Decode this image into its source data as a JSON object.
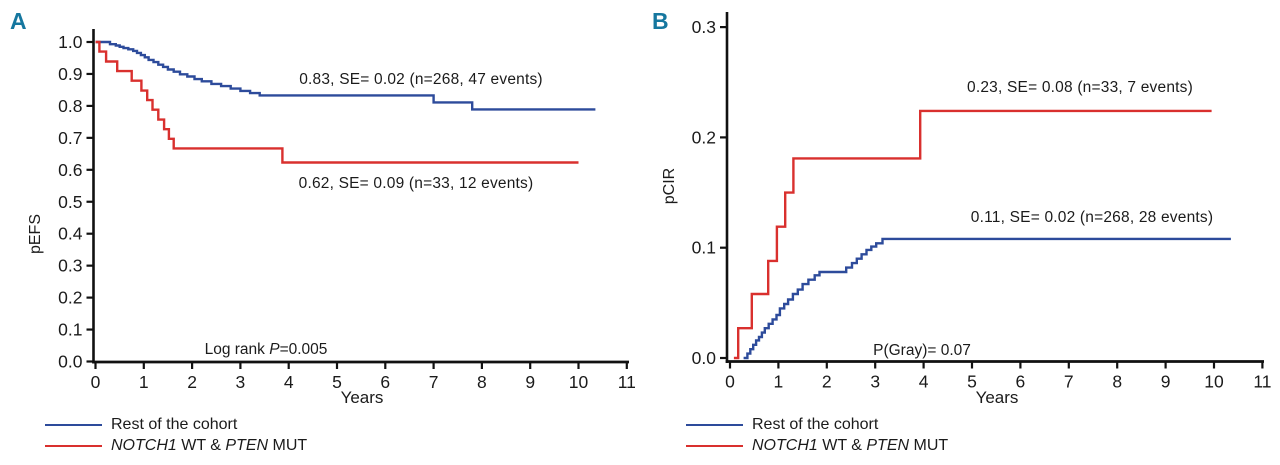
{
  "figure": {
    "panelA": {
      "letter": "A",
      "ylabel": "pEFS",
      "xlabel": "Years",
      "annotation_blue": "0.83, SE= 0.02 (n=268, 47 events)",
      "annotation_red": "0.62, SE= 0.09 (n=33, 12 events)",
      "stats": {
        "prefix": "Log rank ",
        "p": "P",
        "value": "=0.005"
      }
    },
    "panelB": {
      "letter": "B",
      "ylabel": "pCIR",
      "xlabel": "Years",
      "annotation_red": "0.23, SE= 0.08 (n=33, 7 events)",
      "annotation_blue": "0.11, SE= 0.02 (n=268, 28 events)",
      "stats": {
        "text": "P(Gray)= 0.07"
      }
    },
    "legend": {
      "items": [
        {
          "label": "Rest of the cohort",
          "color": "#2d4b9b"
        },
        {
          "gene1": "NOTCH1",
          "mid": " WT & ",
          "gene2": "PTEN",
          "suffix": " MUT",
          "color": "#d9302e"
        }
      ]
    },
    "colors": {
      "blue": "#2d4b9b",
      "red": "#d9302e",
      "panel_letter": "#15779f",
      "axis": "#111111"
    }
  },
  "chart_data": [
    {
      "id": "A",
      "type": "line",
      "subtype": "step-survival",
      "title": "",
      "xlabel": "Years",
      "ylabel": "pEFS",
      "xlim": [
        0,
        11
      ],
      "ylim": [
        0.0,
        1.0
      ],
      "x_tick_labels": [
        "0",
        "1",
        "2",
        "3",
        "4",
        "5",
        "6",
        "7",
        "8",
        "9",
        "10",
        "11"
      ],
      "y_tick_labels": [
        "0.0",
        "0.1",
        "0.2",
        "0.3",
        "0.4",
        "0.5",
        "0.6",
        "0.7",
        "0.8",
        "0.9",
        "1.0"
      ],
      "y_tick_step": 0.1,
      "grid": false,
      "legend_position": "below-left",
      "stats_label": "Log rank P=0.005",
      "series": [
        {
          "name": "Rest of the cohort",
          "color": "#2d4b9b",
          "end_x": 10.35,
          "final_estimate": 0.83,
          "se": 0.02,
          "n": 268,
          "events": 47,
          "steps": [
            [
              0,
              1.0
            ],
            [
              0.3,
              0.993
            ],
            [
              0.42,
              0.989
            ],
            [
              0.5,
              0.985
            ],
            [
              0.58,
              0.981
            ],
            [
              0.68,
              0.977
            ],
            [
              0.78,
              0.972
            ],
            [
              0.86,
              0.966
            ],
            [
              0.94,
              0.959
            ],
            [
              1.02,
              0.952
            ],
            [
              1.1,
              0.944
            ],
            [
              1.2,
              0.937
            ],
            [
              1.3,
              0.929
            ],
            [
              1.4,
              0.922
            ],
            [
              1.5,
              0.914
            ],
            [
              1.62,
              0.907
            ],
            [
              1.75,
              0.899
            ],
            [
              1.9,
              0.892
            ],
            [
              2.05,
              0.884
            ],
            [
              2.2,
              0.877
            ],
            [
              2.4,
              0.869
            ],
            [
              2.6,
              0.862
            ],
            [
              2.8,
              0.854
            ],
            [
              3.0,
              0.847
            ],
            [
              3.2,
              0.84
            ],
            [
              3.4,
              0.833
            ],
            [
              7.0,
              0.811
            ],
            [
              7.8,
              0.789
            ]
          ]
        },
        {
          "name": "NOTCH1 WT & PTEN MUT",
          "color": "#d9302e",
          "end_x": 10.0,
          "final_estimate": 0.62,
          "se": 0.09,
          "n": 33,
          "events": 12,
          "steps": [
            [
              0,
              1.0
            ],
            [
              0.08,
              0.97
            ],
            [
              0.22,
              0.939
            ],
            [
              0.45,
              0.909
            ],
            [
              0.75,
              0.879
            ],
            [
              0.95,
              0.848
            ],
            [
              1.07,
              0.818
            ],
            [
              1.18,
              0.788
            ],
            [
              1.3,
              0.757
            ],
            [
              1.42,
              0.727
            ],
            [
              1.52,
              0.697
            ],
            [
              1.62,
              0.667
            ],
            [
              3.87,
              0.623
            ]
          ]
        }
      ]
    },
    {
      "id": "B",
      "type": "line",
      "subtype": "step-cumulative-incidence",
      "title": "",
      "xlabel": "Years",
      "ylabel": "pCIR",
      "xlim": [
        0,
        11
      ],
      "ylim": [
        0.0,
        0.3
      ],
      "x_tick_labels": [
        "0",
        "1",
        "2",
        "3",
        "4",
        "5",
        "6",
        "7",
        "8",
        "9",
        "10",
        "11"
      ],
      "y_tick_labels": [
        "0.0",
        "0.1",
        "0.2",
        "0.3"
      ],
      "y_tick_step": 0.1,
      "grid": false,
      "legend_position": "below-left",
      "stats_label": "P(Gray)= 0.07",
      "series": [
        {
          "name": "NOTCH1 WT & PTEN MUT",
          "color": "#d9302e",
          "end_x": 9.95,
          "final_estimate": 0.23,
          "se": 0.08,
          "n": 33,
          "events": 7,
          "steps": [
            [
              0.08,
              0
            ],
            [
              0.17,
              0.027
            ],
            [
              0.45,
              0.058
            ],
            [
              0.79,
              0.088
            ],
            [
              0.97,
              0.119
            ],
            [
              1.14,
              0.15
            ],
            [
              1.31,
              0.181
            ],
            [
              3.93,
              0.224
            ]
          ]
        },
        {
          "name": "Rest of the cohort",
          "color": "#2d4b9b",
          "end_x": 10.35,
          "final_estimate": 0.11,
          "se": 0.02,
          "n": 268,
          "events": 28,
          "steps": [
            [
              0.28,
              0
            ],
            [
              0.36,
              0.004
            ],
            [
              0.42,
              0.008
            ],
            [
              0.48,
              0.012
            ],
            [
              0.54,
              0.016
            ],
            [
              0.6,
              0.019
            ],
            [
              0.66,
              0.023
            ],
            [
              0.72,
              0.027
            ],
            [
              0.8,
              0.031
            ],
            [
              0.88,
              0.035
            ],
            [
              0.96,
              0.039
            ],
            [
              1.03,
              0.045
            ],
            [
              1.12,
              0.049
            ],
            [
              1.2,
              0.053
            ],
            [
              1.3,
              0.058
            ],
            [
              1.4,
              0.062
            ],
            [
              1.5,
              0.067
            ],
            [
              1.62,
              0.071
            ],
            [
              1.75,
              0.075
            ],
            [
              1.85,
              0.078
            ],
            [
              2.4,
              0.082
            ],
            [
              2.52,
              0.086
            ],
            [
              2.62,
              0.09
            ],
            [
              2.72,
              0.094
            ],
            [
              2.82,
              0.098
            ],
            [
              2.92,
              0.101
            ],
            [
              3.02,
              0.104
            ],
            [
              3.15,
              0.108
            ]
          ]
        }
      ]
    }
  ]
}
